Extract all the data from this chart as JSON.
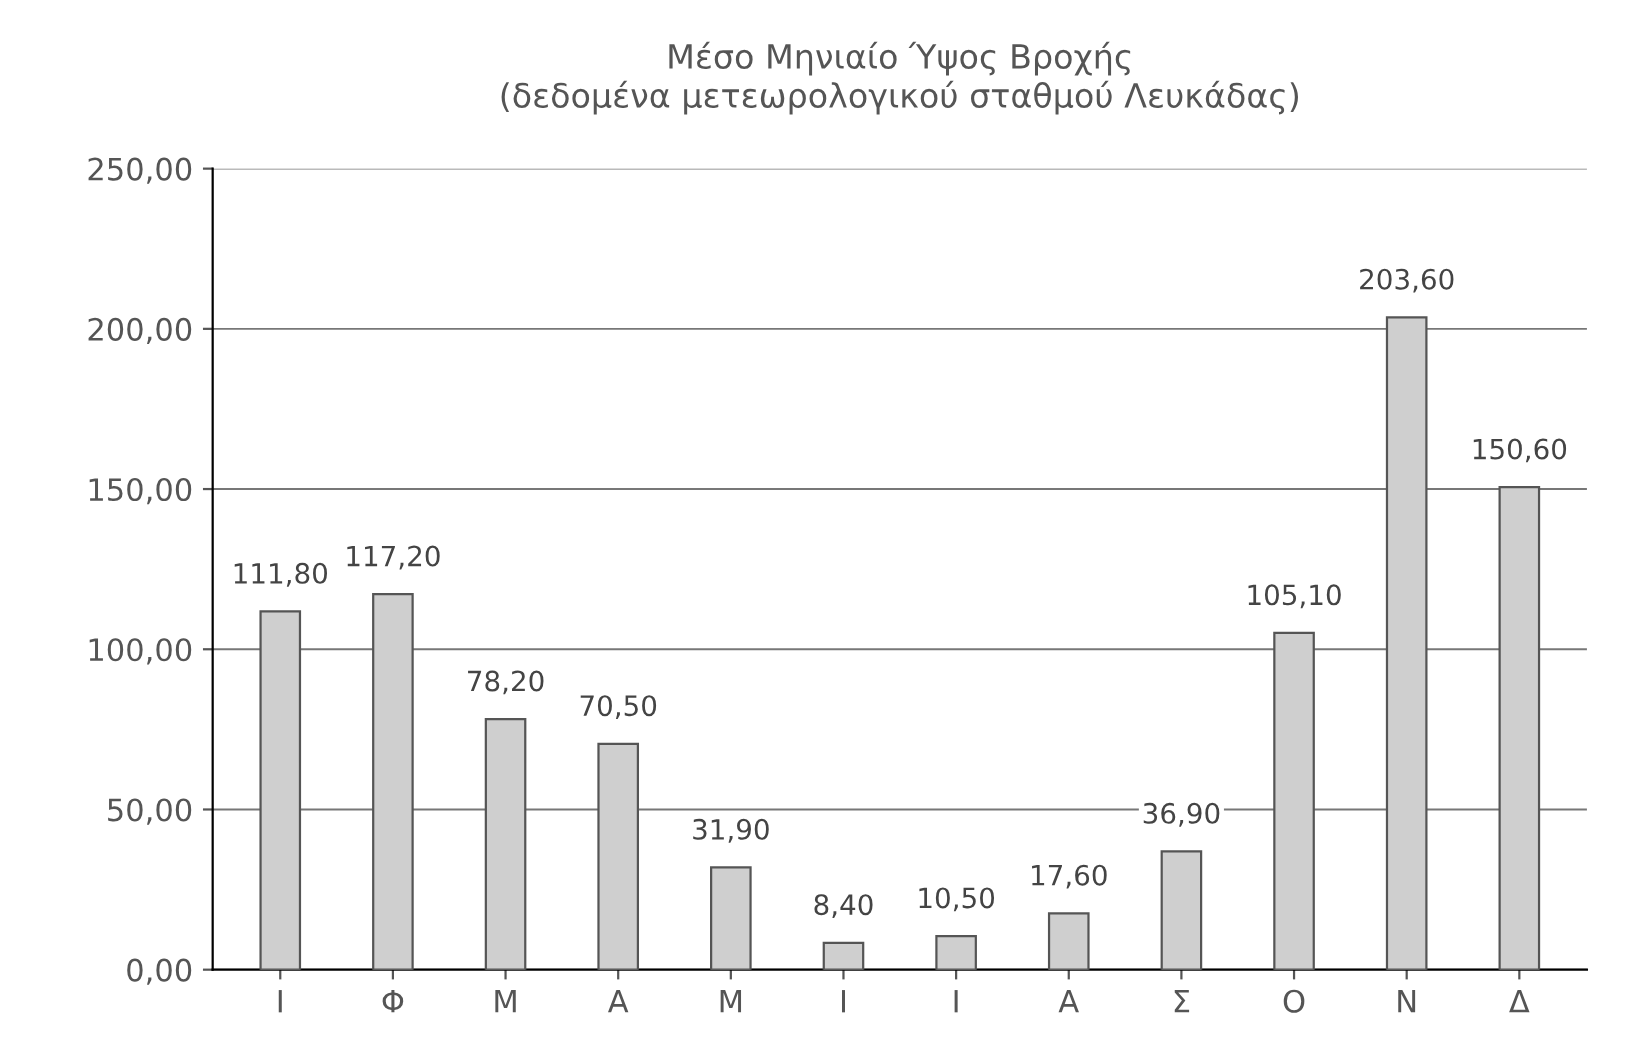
{
  "chart_data": {
    "type": "bar",
    "title": "Μέσο Μηνιαίο Ύψος Βροχής\n(δεδομένα μετεωρολογικού σταθμού Λευκάδας)",
    "categories": [
      "Ι",
      "Φ",
      "Μ",
      "Α",
      "Μ",
      "Ι",
      "Ι",
      "Α",
      "Σ",
      "Ο",
      "Ν",
      "Δ"
    ],
    "values": [
      111.8,
      117.2,
      78.2,
      70.5,
      31.9,
      8.4,
      10.5,
      17.6,
      36.9,
      105.1,
      203.6,
      150.6
    ],
    "value_labels": [
      "111,80",
      "117,20",
      "78,20",
      "70,50",
      "31,90",
      "8,40",
      "10,50",
      "17,60",
      "36,90",
      "105,10",
      "203,60",
      "150,60"
    ],
    "color": "#cfcfcf",
    "ylim": [
      0,
      250
    ],
    "yticks": [
      {
        "value": 0,
        "label": "0,00"
      },
      {
        "value": 50,
        "label": "50,00"
      },
      {
        "value": 100,
        "label": "100,00"
      },
      {
        "value": 150,
        "label": "150,00"
      },
      {
        "value": 200,
        "label": "200,00"
      },
      {
        "value": 250,
        "label": "250,00"
      }
    ],
    "grid": "y"
  }
}
